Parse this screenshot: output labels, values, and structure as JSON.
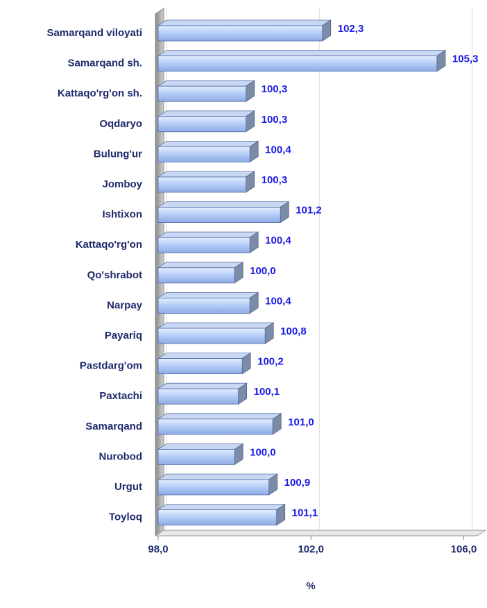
{
  "chart_data": {
    "type": "bar",
    "orientation": "horizontal",
    "categories": [
      "Samarqand viloyati",
      "Samarqand sh.",
      "Kattaqo'rg'on sh.",
      "Oqdaryo",
      "Bulung'ur",
      "Jomboy",
      "Ishtixon",
      "Kattaqo'rg'on",
      "Qo'shrabot",
      "Narpay",
      "Payariq",
      "Pastdarg'om",
      "Paxtachi",
      "Samarqand",
      "Nurobod",
      "Urgut",
      "Toyloq"
    ],
    "values": [
      102.3,
      105.3,
      100.3,
      100.3,
      100.4,
      100.3,
      101.2,
      100.4,
      100.0,
      100.4,
      100.8,
      100.2,
      100.1,
      101.0,
      100.0,
      100.9,
      101.1
    ],
    "value_labels": [
      "102,3",
      "105,3",
      "100,3",
      "100,3",
      "100,4",
      "100,3",
      "101,2",
      "100,4",
      "100,0",
      "100,4",
      "100,8",
      "100,2",
      "100,1",
      "101,0",
      "100,0",
      "100,9",
      "101,1"
    ],
    "color": "#b3cbf6",
    "xlabel": "%",
    "xlim": [
      98,
      106.5
    ],
    "xticks": [
      {
        "value": 98,
        "label": "98,0"
      },
      {
        "value": 102,
        "label": "102,0"
      },
      {
        "value": 106,
        "label": "106,0"
      }
    ],
    "grid": true
  }
}
